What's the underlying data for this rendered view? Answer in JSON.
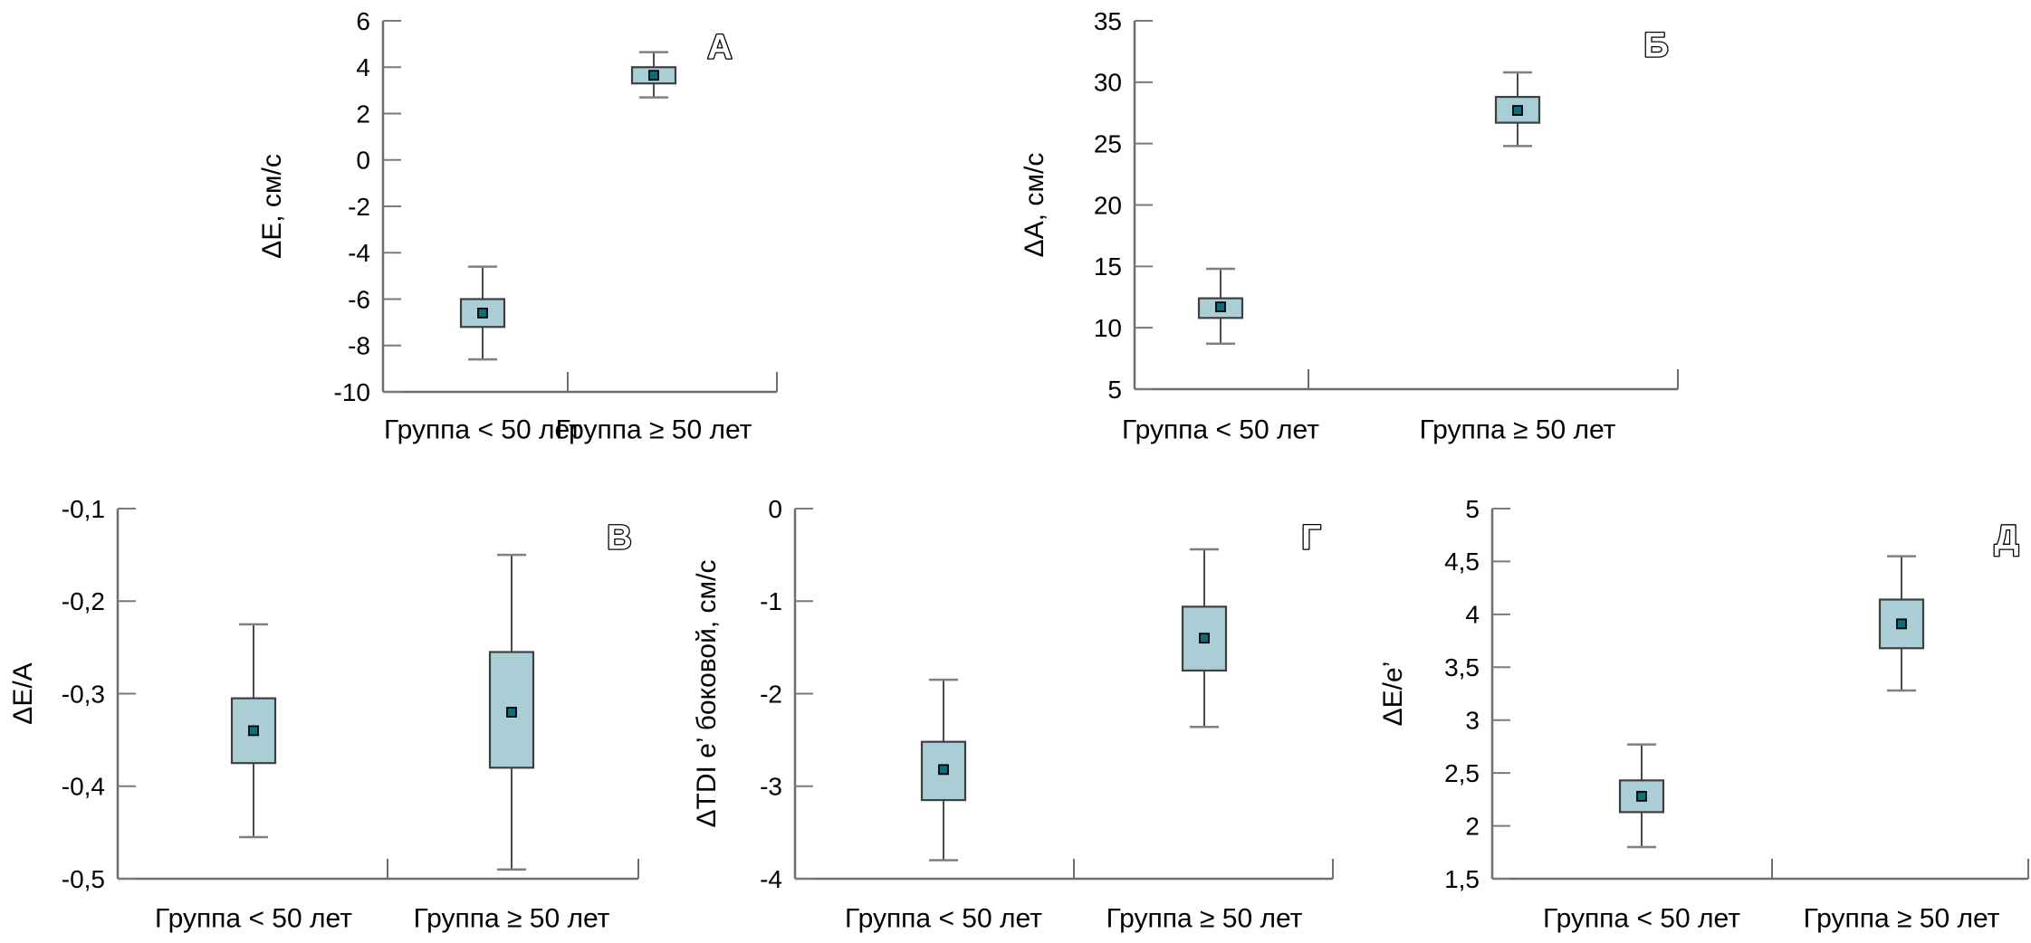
{
  "figure": {
    "x_categories": [
      "Группа < 50 лет",
      "Группа ≥ 50 лет"
    ],
    "colors": {
      "background": "#ffffff",
      "box_fill": "#a9ced5",
      "box_border": "#3f3f3f",
      "whisker": "#4a4a4a",
      "whisker_cap": "#7f7f7f",
      "mean_fill": "#0d6e7e",
      "mean_border": "#000000",
      "axis": "#6e6e6e",
      "tick": "#7a7a7a",
      "text": "#000000"
    }
  },
  "chart_data": [
    {
      "type": "box",
      "panel_letter": "А",
      "ylabel": "ΔE, см/с",
      "ylim": [
        -10,
        6
      ],
      "yticks": [
        6,
        4,
        2,
        0,
        -2,
        -4,
        -6,
        -8,
        -10
      ],
      "ytick_labels": [
        "6",
        "4",
        "2",
        "0",
        "-2",
        "-4",
        "-6",
        "-8",
        "-10"
      ],
      "categories": [
        "Группа < 50 лет",
        "Группа ≥ 50 лет"
      ],
      "series": [
        {
          "name": "Группа < 50 лет",
          "whisker_low": -8.6,
          "q1": -7.2,
          "mean": -6.6,
          "q3": -6.0,
          "whisker_high": -4.6
        },
        {
          "name": "Группа ≥ 50 лет",
          "whisker_low": 2.7,
          "q1": 3.3,
          "mean": 3.65,
          "q3": 4.0,
          "whisker_high": 4.65
        }
      ]
    },
    {
      "type": "box",
      "panel_letter": "Б",
      "ylabel": "ΔA, см/с",
      "ylim": [
        5,
        35
      ],
      "yticks": [
        35,
        30,
        25,
        20,
        15,
        10,
        5
      ],
      "ytick_labels": [
        "35",
        "30",
        "25",
        "20",
        "15",
        "10",
        "5"
      ],
      "categories": [
        "Группа < 50 лет",
        "Группа ≥ 50 лет"
      ],
      "series": [
        {
          "name": "Группа < 50 лет",
          "whisker_low": 8.7,
          "q1": 10.8,
          "mean": 11.7,
          "q3": 12.4,
          "whisker_high": 14.8
        },
        {
          "name": "Группа ≥ 50 лет",
          "whisker_low": 24.8,
          "q1": 26.7,
          "mean": 27.7,
          "q3": 28.8,
          "whisker_high": 30.8
        }
      ]
    },
    {
      "type": "box",
      "panel_letter": "В",
      "ylabel": "ΔE/A",
      "ylim": [
        -0.5,
        -0.1
      ],
      "yticks": [
        -0.1,
        -0.2,
        -0.3,
        -0.4,
        -0.5
      ],
      "ytick_labels": [
        "-0,1",
        "-0,2",
        "-0,3",
        "-0,4",
        "-0,5"
      ],
      "categories": [
        "Группа < 50 лет",
        "Группа ≥ 50 лет"
      ],
      "series": [
        {
          "name": "Группа < 50 лет",
          "whisker_low": -0.455,
          "q1": -0.375,
          "mean": -0.34,
          "q3": -0.305,
          "whisker_high": -0.225
        },
        {
          "name": "Группа ≥ 50 лет",
          "whisker_low": -0.49,
          "q1": -0.38,
          "mean": -0.32,
          "q3": -0.255,
          "whisker_high": -0.15
        }
      ]
    },
    {
      "type": "box",
      "panel_letter": "Г",
      "ylabel": "ΔTDI e’ боковой, см/с",
      "ylim": [
        -4,
        0
      ],
      "yticks": [
        0,
        -1,
        -2,
        -3,
        -4
      ],
      "ytick_labels": [
        "0",
        "-1",
        "-2",
        "-3",
        "-4"
      ],
      "categories": [
        "Группа < 50 лет",
        "Группа ≥ 50 лет"
      ],
      "series": [
        {
          "name": "Группа < 50 лет",
          "whisker_low": -3.8,
          "q1": -3.15,
          "mean": -2.82,
          "q3": -2.52,
          "whisker_high": -1.85
        },
        {
          "name": "Группа ≥ 50 лет",
          "whisker_low": -2.36,
          "q1": -1.75,
          "mean": -1.4,
          "q3": -1.06,
          "whisker_high": -0.44
        }
      ]
    },
    {
      "type": "box",
      "panel_letter": "Д",
      "ylabel": "ΔE/e’",
      "ylim": [
        1.5,
        5
      ],
      "yticks": [
        5,
        4.5,
        4,
        3.5,
        3,
        2.5,
        2,
        1.5
      ],
      "ytick_labels": [
        "5",
        "4,5",
        "4",
        "3,5",
        "3",
        "2,5",
        "2",
        "1,5"
      ],
      "categories": [
        "Группа < 50 лет",
        "Группа ≥ 50 лет"
      ],
      "series": [
        {
          "name": "Группа < 50 лет",
          "whisker_low": 1.8,
          "q1": 2.13,
          "mean": 2.28,
          "q3": 2.43,
          "whisker_high": 2.77
        },
        {
          "name": "Группа ≥ 50 лет",
          "whisker_low": 3.28,
          "q1": 3.68,
          "mean": 3.91,
          "q3": 4.14,
          "whisker_high": 4.55
        }
      ]
    }
  ]
}
